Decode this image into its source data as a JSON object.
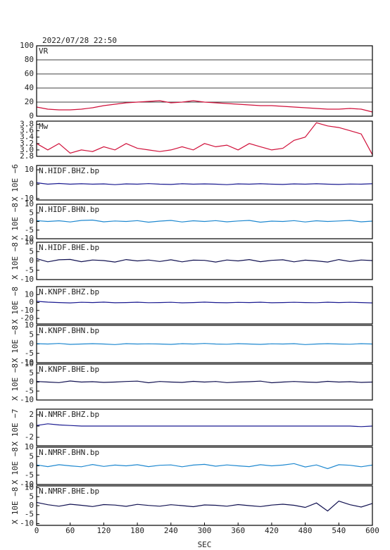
{
  "chart_data": [
    {
      "type": "line",
      "title": "2022/07/28 22:50",
      "label": "VR",
      "x": [
        0,
        20,
        40,
        60,
        80,
        100,
        120,
        140,
        160,
        180,
        200,
        220,
        240,
        260,
        280,
        300,
        320,
        340,
        360,
        380,
        400,
        420,
        440,
        460,
        480,
        500,
        520,
        540,
        560,
        580,
        600
      ],
      "series": [
        {
          "color": "#d0103a",
          "values": [
            13,
            10,
            9,
            9,
            10,
            12,
            15,
            17,
            19,
            20,
            21,
            22,
            19,
            20,
            22,
            20,
            19,
            18,
            17,
            16,
            15,
            15,
            14,
            13,
            12,
            11,
            10,
            10,
            11,
            10,
            6
          ]
        }
      ],
      "xlim": [
        0,
        600
      ],
      "ylim": [
        0,
        100
      ],
      "yticks": [
        0,
        20,
        40,
        60,
        80,
        100
      ],
      "grid": true
    },
    {
      "type": "line",
      "label": "Mw",
      "x": [
        0,
        20,
        40,
        60,
        80,
        100,
        120,
        140,
        160,
        180,
        200,
        220,
        240,
        260,
        280,
        300,
        320,
        340,
        360,
        380,
        400,
        420,
        440,
        460,
        480,
        500,
        520,
        540,
        560,
        580,
        600
      ],
      "series": [
        {
          "color": "#d0103a",
          "values": [
            3.2,
            3.0,
            3.2,
            2.9,
            3.0,
            2.95,
            3.1,
            3.0,
            3.2,
            3.05,
            3.0,
            2.95,
            3.0,
            3.1,
            3.0,
            3.2,
            3.1,
            3.15,
            3.0,
            3.2,
            3.1,
            3.0,
            3.05,
            3.3,
            3.4,
            3.85,
            3.75,
            3.7,
            3.6,
            3.5,
            2.85
          ]
        }
      ],
      "xlim": [
        0,
        600
      ],
      "ylim": [
        2.8,
        3.9
      ],
      "yticks": [
        2.8,
        {
          "value": 3,
          "label": "3.0"
        },
        3.2,
        3.4,
        3.6,
        3.8
      ]
    },
    {
      "type": "line",
      "label": "N.HIDF.BHZ.bp",
      "ylabel": "X 10E −6",
      "x": [
        0,
        20,
        40,
        60,
        80,
        100,
        120,
        140,
        160,
        180,
        200,
        220,
        240,
        260,
        280,
        300,
        320,
        340,
        360,
        380,
        400,
        420,
        440,
        460,
        480,
        500,
        520,
        540,
        560,
        580,
        600
      ],
      "series": [
        {
          "color": "#1a1a90",
          "values": [
            1,
            0,
            0.5,
            0,
            0.3,
            0,
            0.2,
            -0.3,
            0.2,
            0,
            0.4,
            0,
            -0.2,
            0.3,
            0,
            0.2,
            0,
            -0.3,
            0.2,
            0,
            0.3,
            0,
            -0.2,
            0.2,
            0,
            0.3,
            0,
            -0.2,
            0.1,
            0,
            0.3
          ]
        }
      ],
      "xlim": [
        0,
        600
      ],
      "ylim": [
        -11,
        13
      ],
      "yticks": [
        -10,
        0,
        10
      ]
    },
    {
      "type": "line",
      "label": "N.HIDF.BHN.bp",
      "ylabel": "X 10E −8",
      "x": [
        0,
        20,
        40,
        60,
        80,
        100,
        120,
        140,
        160,
        180,
        200,
        220,
        240,
        260,
        280,
        300,
        320,
        340,
        360,
        380,
        400,
        420,
        440,
        460,
        480,
        500,
        520,
        540,
        560,
        580,
        600
      ],
      "series": [
        {
          "color": "#1e88d0",
          "values": [
            0.5,
            0,
            0.4,
            -0.3,
            0.6,
            0.8,
            -0.2,
            0.3,
            0,
            0.5,
            -0.4,
            0.2,
            0.6,
            -0.3,
            0.4,
            0,
            0.5,
            -0.2,
            0.3,
            0.6,
            -0.4,
            0.2,
            0,
            0.5,
            -0.3,
            0.4,
            0,
            0.3,
            0.6,
            -0.2,
            0.2
          ]
        }
      ],
      "xlim": [
        0,
        600
      ],
      "ylim": [
        -10,
        10
      ],
      "yticks": [
        -10,
        -5,
        0,
        5,
        10
      ]
    },
    {
      "type": "line",
      "label": "N.HIDF.BHE.bp",
      "ylabel": "X 10E −8",
      "x": [
        0,
        20,
        40,
        60,
        80,
        100,
        120,
        140,
        160,
        180,
        200,
        220,
        240,
        260,
        280,
        300,
        320,
        340,
        360,
        380,
        400,
        420,
        440,
        460,
        480,
        500,
        520,
        540,
        560,
        580,
        600
      ],
      "series": [
        {
          "color": "#101050",
          "values": [
            1.2,
            -0.5,
            0.6,
            0.8,
            -0.4,
            0.5,
            0.2,
            -0.6,
            0.7,
            0,
            0.5,
            -0.3,
            0.6,
            -0.5,
            0.4,
            0.3,
            -0.6,
            0.5,
            0,
            0.7,
            -0.4,
            0.3,
            0.6,
            -0.5,
            0.4,
            0,
            -0.6,
            0.7,
            -0.3,
            0.5,
            0.2
          ]
        }
      ],
      "xlim": [
        0,
        600
      ],
      "ylim": [
        -10,
        10
      ],
      "yticks": [
        -10,
        -5,
        0,
        5,
        10
      ]
    },
    {
      "type": "line",
      "label": "N.KNPF.BHZ.bp",
      "ylabel": "X 10E −8",
      "x": [
        0,
        20,
        40,
        60,
        80,
        100,
        120,
        140,
        160,
        180,
        200,
        220,
        240,
        260,
        280,
        300,
        320,
        340,
        360,
        380,
        400,
        420,
        440,
        460,
        480,
        500,
        520,
        540,
        560,
        580,
        600
      ],
      "series": [
        {
          "color": "#1a1a90",
          "values": [
            1.5,
            0.5,
            0,
            -0.5,
            0.3,
            0,
            0.5,
            -0.3,
            0,
            0.4,
            -0.2,
            0,
            0.3,
            -0.4,
            0,
            0.5,
            0,
            -0.3,
            0.2,
            0,
            0.4,
            -0.3,
            0,
            0.3,
            0,
            -0.2,
            0.4,
            0,
            0.3,
            0,
            -0.5
          ]
        }
      ],
      "xlim": [
        0,
        600
      ],
      "ylim": [
        -27,
        20
      ],
      "yticks": [
        -20,
        -10,
        0,
        10
      ]
    },
    {
      "type": "line",
      "label": "N.KNPF.BHN.bp",
      "ylabel": "X 10E −8",
      "x": [
        0,
        20,
        40,
        60,
        80,
        100,
        120,
        140,
        160,
        180,
        200,
        220,
        240,
        260,
        280,
        300,
        320,
        340,
        360,
        380,
        400,
        420,
        440,
        460,
        480,
        500,
        520,
        540,
        560,
        580,
        600
      ],
      "series": [
        {
          "color": "#1e88d0",
          "values": [
            0.2,
            0,
            0.3,
            -0.2,
            0,
            0.2,
            0,
            -0.3,
            0.2,
            0,
            0.1,
            0,
            -0.2,
            0.2,
            0,
            0.3,
            0,
            -0.1,
            0.2,
            0,
            -0.2,
            0.1,
            0,
            0.2,
            -0.3,
            0,
            0.2,
            0,
            -0.1,
            0.2,
            0
          ]
        }
      ],
      "xlim": [
        0,
        600
      ],
      "ylim": [
        -10,
        10
      ],
      "yticks": [
        -10,
        -5,
        0,
        5,
        10
      ]
    },
    {
      "type": "line",
      "label": "N.KNPF.BHE.bp",
      "ylabel": "X 10E −8",
      "x": [
        0,
        20,
        40,
        60,
        80,
        100,
        120,
        140,
        160,
        180,
        200,
        220,
        240,
        260,
        280,
        300,
        320,
        340,
        360,
        380,
        400,
        420,
        440,
        460,
        480,
        500,
        520,
        540,
        560,
        580,
        600
      ],
      "series": [
        {
          "color": "#101050",
          "values": [
            0.3,
            0,
            -0.3,
            0.6,
            0,
            0.2,
            -0.2,
            0,
            0.3,
            0.5,
            -0.4,
            0.3,
            0,
            -0.2,
            0.4,
            0,
            0.3,
            -0.3,
            0,
            0.2,
            0.5,
            -0.4,
            0,
            0.3,
            0,
            -0.2,
            0.4,
            0,
            0.2,
            -0.2,
            0
          ]
        }
      ],
      "xlim": [
        0,
        600
      ],
      "ylim": [
        -10,
        10
      ],
      "yticks": [
        -10,
        -5,
        0,
        5,
        10
      ]
    },
    {
      "type": "line",
      "label": "N.NMRF.BHZ.bp",
      "ylabel": "X 10E −7",
      "x": [
        0,
        20,
        40,
        60,
        80,
        100,
        120,
        140,
        160,
        180,
        200,
        220,
        240,
        260,
        280,
        300,
        320,
        340,
        360,
        380,
        400,
        420,
        440,
        460,
        480,
        500,
        520,
        540,
        560,
        580,
        600
      ],
      "series": [
        {
          "color": "#1a1a90",
          "values": [
            0.1,
            0.4,
            0.2,
            0.1,
            0,
            0,
            0,
            0,
            0,
            0,
            0,
            0,
            0,
            0,
            0,
            0,
            0,
            0,
            0,
            0,
            0,
            0,
            0,
            0,
            0,
            0,
            0,
            0,
            0,
            -0.1,
            0
          ]
        }
      ],
      "xlim": [
        0,
        600
      ],
      "ylim": [
        -3.5,
        3
      ],
      "yticks": [
        -2,
        0,
        2
      ]
    },
    {
      "type": "line",
      "label": "N.NMRF.BHN.bp",
      "ylabel": "X 10E −8",
      "x": [
        0,
        20,
        40,
        60,
        80,
        100,
        120,
        140,
        160,
        180,
        200,
        220,
        240,
        260,
        280,
        300,
        320,
        340,
        360,
        380,
        400,
        420,
        440,
        460,
        480,
        500,
        520,
        540,
        560,
        580,
        600
      ],
      "series": [
        {
          "color": "#1e88d0",
          "values": [
            0.5,
            -0.4,
            0.6,
            0,
            -0.5,
            0.7,
            -0.3,
            0.4,
            0,
            0.6,
            -0.4,
            0.3,
            0.5,
            -0.5,
            0.4,
            0.8,
            -0.2,
            0.5,
            0,
            -0.4,
            0.6,
            0,
            0.4,
            1.2,
            -0.6,
            0.5,
            -1.5,
            0.6,
            0.3,
            -0.5,
            0.4
          ]
        }
      ],
      "xlim": [
        0,
        600
      ],
      "ylim": [
        -10,
        10
      ],
      "yticks": [
        -10,
        -5,
        0,
        5,
        10
      ]
    },
    {
      "type": "line",
      "label": "N.NMRF.BHE.bp",
      "ylabel": "X 10E −8",
      "xlabel": "SEC",
      "x": [
        0,
        20,
        40,
        60,
        80,
        100,
        120,
        140,
        160,
        180,
        200,
        220,
        240,
        260,
        280,
        300,
        320,
        340,
        360,
        380,
        400,
        420,
        440,
        460,
        480,
        500,
        520,
        540,
        560,
        580,
        600
      ],
      "series": [
        {
          "color": "#101050",
          "values": [
            1.8,
            0.5,
            -0.3,
            0.8,
            0.2,
            -0.5,
            0.6,
            0.3,
            -0.4,
            0.7,
            0.1,
            -0.3,
            0.5,
            0,
            -0.6,
            0.4,
            0.2,
            -0.3,
            0.6,
            0,
            -0.5,
            0.3,
            0.8,
            0.2,
            -1,
            1.5,
            -3,
            2.5,
            0.5,
            -0.8,
            1.2
          ]
        }
      ],
      "xlim": [
        0,
        600
      ],
      "ylim": [
        -11,
        11
      ],
      "yticks": [
        -10,
        -5,
        0,
        5,
        10
      ],
      "xticks": [
        0,
        60,
        120,
        180,
        240,
        300,
        360,
        420,
        480,
        540,
        600
      ]
    }
  ]
}
